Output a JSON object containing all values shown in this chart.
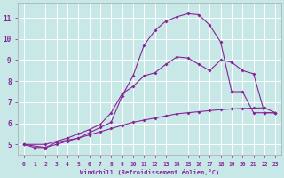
{
  "background_color": "#c8e8e8",
  "grid_color": "#ffffff",
  "line_color": "#882299",
  "xlabel": "Windchill (Refroidissement éolien,°C)",
  "ylabel_values": [
    5,
    6,
    7,
    8,
    9,
    10,
    11
  ],
  "xlabel_values": [
    0,
    1,
    2,
    3,
    4,
    5,
    6,
    7,
    8,
    9,
    10,
    11,
    12,
    13,
    14,
    15,
    16,
    17,
    18,
    19,
    20,
    21,
    22,
    23
  ],
  "xlim": [
    -0.5,
    23.5
  ],
  "ylim": [
    4.5,
    11.7
  ],
  "curve1_x": [
    0,
    1,
    2,
    3,
    4,
    5,
    6,
    7,
    8,
    9,
    10,
    11,
    12,
    13,
    14,
    15,
    16,
    17,
    18,
    19,
    20,
    21,
    22,
    23
  ],
  "curve1_y": [
    5.0,
    4.85,
    4.85,
    5.1,
    5.2,
    5.3,
    5.45,
    5.6,
    5.75,
    5.9,
    6.05,
    6.15,
    6.25,
    6.35,
    6.45,
    6.5,
    6.55,
    6.6,
    6.65,
    6.68,
    6.7,
    6.72,
    6.73,
    6.5
  ],
  "curve2_x": [
    0,
    2,
    3,
    4,
    5,
    6,
    7,
    8,
    9,
    10,
    11,
    12,
    13,
    14,
    15,
    16,
    17,
    18,
    19,
    20,
    21,
    22,
    23
  ],
  "curve2_y": [
    5.0,
    5.0,
    5.15,
    5.3,
    5.5,
    5.7,
    5.95,
    6.5,
    7.4,
    7.75,
    8.25,
    8.4,
    8.8,
    9.15,
    9.1,
    8.8,
    8.5,
    9.0,
    8.9,
    8.5,
    8.35,
    6.5,
    6.5
  ],
  "curve3_x": [
    0,
    2,
    3,
    4,
    5,
    6,
    7,
    8,
    9,
    10,
    11,
    12,
    13,
    14,
    15,
    16,
    17,
    18,
    19,
    20,
    21,
    22,
    23
  ],
  "curve3_y": [
    5.0,
    4.85,
    5.0,
    5.15,
    5.3,
    5.55,
    5.8,
    6.05,
    7.3,
    8.25,
    9.7,
    10.4,
    10.85,
    11.05,
    11.2,
    11.15,
    10.65,
    9.85,
    7.5,
    7.5,
    6.5,
    6.5,
    6.5
  ]
}
